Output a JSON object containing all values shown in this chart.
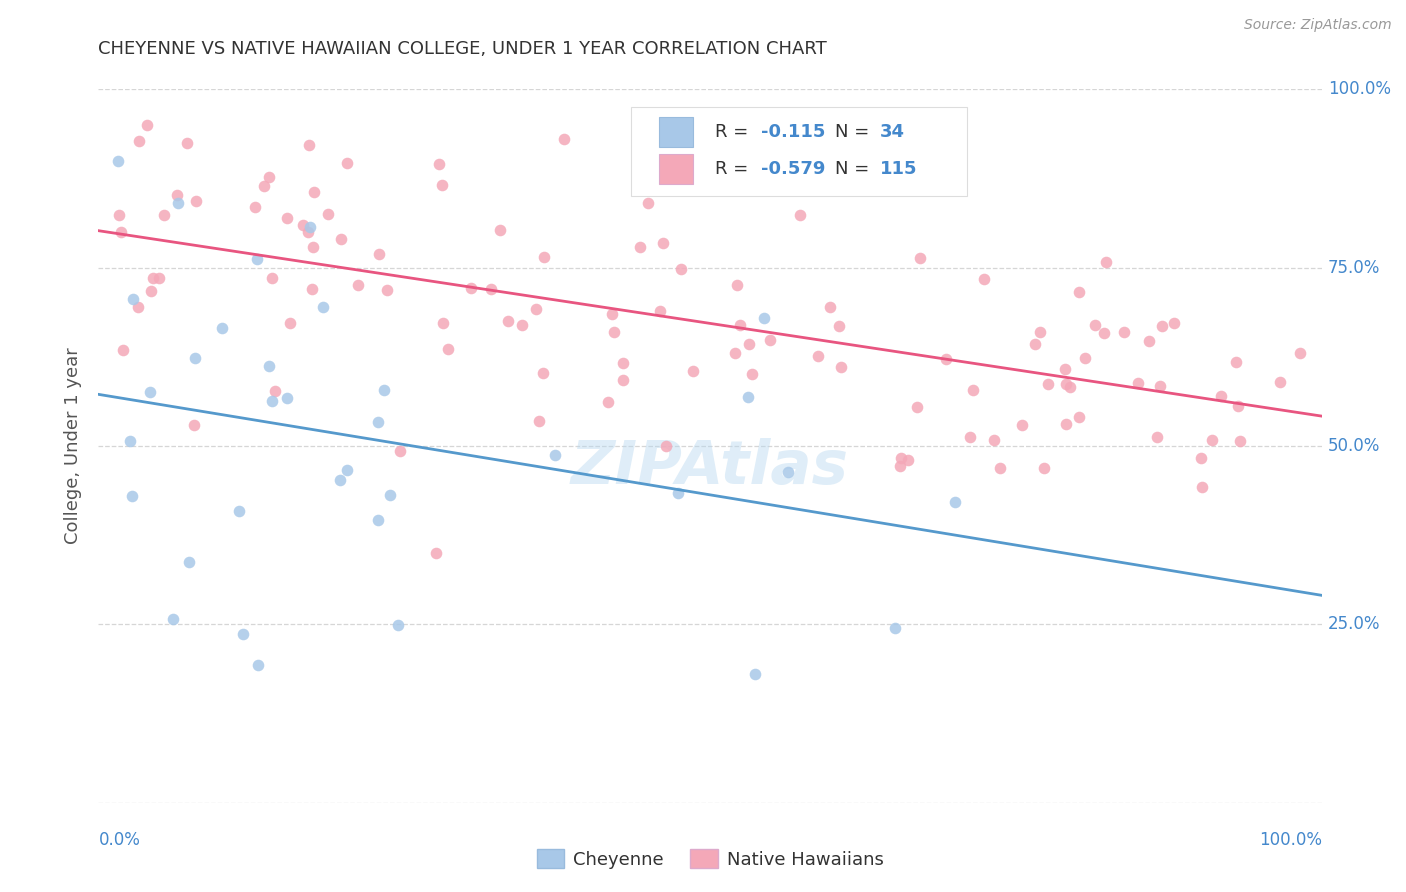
{
  "title": "CHEYENNE VS NATIVE HAWAIIAN COLLEGE, UNDER 1 YEAR CORRELATION CHART",
  "source": "Source: ZipAtlas.com",
  "ylabel": "College, Under 1 year",
  "cheyenne_color": "#a8c8e8",
  "nh_color": "#f4a8b8",
  "cheyenne_line_color": "#5599cc",
  "nh_line_color": "#e85580",
  "axis_color": "#4488cc",
  "R_cheyenne": -0.115,
  "N_cheyenne": 34,
  "R_nh": -0.579,
  "N_nh": 115,
  "legend_label_cheyenne": "Cheyenne",
  "legend_label_nh": "Native Hawaiians",
  "watermark": "ZIPAtlas"
}
